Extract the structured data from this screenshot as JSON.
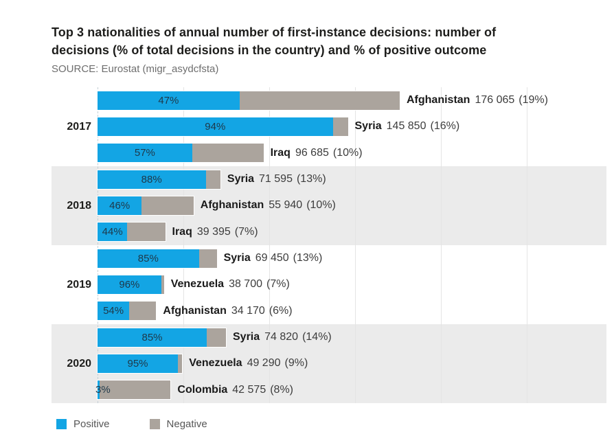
{
  "header": {
    "title_lines": [
      "Top 3 nationalities of annual number of first-instance decisions: number of",
      "decisions (% of total decisions in the country) and % of positive outcome"
    ],
    "source": "SOURCE: Eurostat (migr_asydcfsta)"
  },
  "chart_data": {
    "type": "bar",
    "orientation": "horizontal",
    "title": "Top 3 nationalities of annual number of first-instance decisions: number of decisions (% of total decisions in the country) and % of positive outcome",
    "source": "SOURCE: Eurostat (migr_asydcfsta)",
    "x_axis": {
      "unit": "number of first-instance decisions",
      "max": 176065,
      "grid_interval": 50000,
      "grid": "vertical, light"
    },
    "legend": [
      "Positive",
      "Negative"
    ],
    "legend_position": "bottom-left",
    "colors": {
      "positive": "#13a5e4",
      "negative": "#aba49d",
      "band": "#ebebeb"
    },
    "groups": [
      {
        "year": "2017",
        "rows": [
          {
            "country": "Afghanistan",
            "decisions": 176065,
            "decisions_label": "176 065",
            "share_label": "(19%)",
            "positive_pct": 47,
            "positive_label": "47%"
          },
          {
            "country": "Syria",
            "decisions": 145850,
            "decisions_label": "145 850",
            "share_label": "(16%)",
            "positive_pct": 94,
            "positive_label": "94%"
          },
          {
            "country": "Iraq",
            "decisions": 96685,
            "decisions_label": "96 685",
            "share_label": "(10%)",
            "positive_pct": 57,
            "positive_label": "57%"
          }
        ]
      },
      {
        "year": "2018",
        "rows": [
          {
            "country": "Syria",
            "decisions": 71595,
            "decisions_label": "71 595",
            "share_label": "(13%)",
            "positive_pct": 88,
            "positive_label": "88%"
          },
          {
            "country": "Afghanistan",
            "decisions": 55940,
            "decisions_label": "55 940",
            "share_label": "(10%)",
            "positive_pct": 46,
            "positive_label": "46%"
          },
          {
            "country": "Iraq",
            "decisions": 39395,
            "decisions_label": "39 395",
            "share_label": "(7%)",
            "positive_pct": 44,
            "positive_label": "44%"
          }
        ]
      },
      {
        "year": "2019",
        "rows": [
          {
            "country": "Syria",
            "decisions": 69450,
            "decisions_label": "69 450",
            "share_label": "(13%)",
            "positive_pct": 85,
            "positive_label": "85%"
          },
          {
            "country": "Venezuela",
            "decisions": 38700,
            "decisions_label": "38 700",
            "share_label": "(7%)",
            "positive_pct": 96,
            "positive_label": "96%"
          },
          {
            "country": "Afghanistan",
            "decisions": 34170,
            "decisions_label": "34 170",
            "share_label": "(6%)",
            "positive_pct": 54,
            "positive_label": "54%"
          }
        ]
      },
      {
        "year": "2020",
        "rows": [
          {
            "country": "Syria",
            "decisions": 74820,
            "decisions_label": "74 820",
            "share_label": "(14%)",
            "positive_pct": 85,
            "positive_label": "85%"
          },
          {
            "country": "Venezuela",
            "decisions": 49290,
            "decisions_label": "49 290",
            "share_label": "(9%)",
            "positive_pct": 95,
            "positive_label": "95%"
          },
          {
            "country": "Colombia",
            "decisions": 42575,
            "decisions_label": "42 575",
            "share_label": "(8%)",
            "positive_pct": 3,
            "positive_label": "3%"
          }
        ]
      }
    ]
  }
}
